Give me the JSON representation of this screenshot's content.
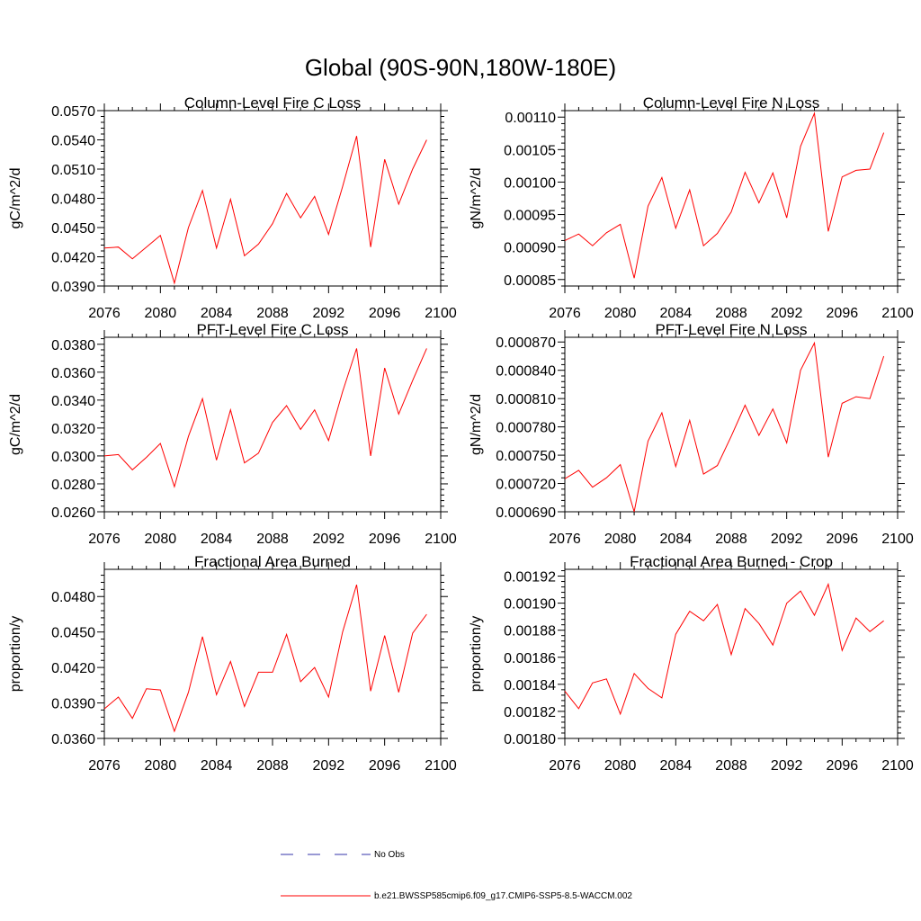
{
  "figure": {
    "title": "Global (90S-90N,180W-180E)"
  },
  "legend": {
    "entries": [
      {
        "label": "No Obs",
        "color": "#3333aa",
        "style": "dashed"
      },
      {
        "label": "b.e21.BWSSP585cmip6.f09_g17.CMIP6-SSP5-8.5-WACCM.002",
        "color": "#ff0000",
        "style": "solid"
      }
    ]
  },
  "chart_data": [
    {
      "type": "line",
      "title": "Column-Level Fire C Loss",
      "xlabel": "",
      "ylabel": "gC/m^2/d",
      "xlim": [
        2076,
        2100
      ],
      "ylim": [
        0.039,
        0.057
      ],
      "xticks": [
        "2076",
        "2080",
        "2084",
        "2088",
        "2092",
        "2096",
        "2100"
      ],
      "yticks": [
        "0.0390",
        "0.0420",
        "0.0450",
        "0.0480",
        "0.0510",
        "0.0540",
        "0.0570"
      ],
      "x": [
        2076,
        2077,
        2078,
        2079,
        2080,
        2081,
        2082,
        2083,
        2084,
        2085,
        2086,
        2087,
        2088,
        2089,
        2090,
        2091,
        2092,
        2093,
        2094,
        2095,
        2096,
        2097,
        2098,
        2099
      ],
      "series": [
        {
          "color": "#ff0000",
          "values": [
            0.0429,
            0.043,
            0.0418,
            0.043,
            0.0442,
            0.0393,
            0.045,
            0.0488,
            0.0429,
            0.0479,
            0.0421,
            0.0433,
            0.0454,
            0.0485,
            0.046,
            0.0482,
            0.0443,
            0.0492,
            0.0544,
            0.043,
            0.052,
            0.0474,
            0.051,
            0.054
          ]
        }
      ]
    },
    {
      "type": "line",
      "title": "Column-Level Fire N Loss",
      "xlabel": "",
      "ylabel": "gN/m^2/d",
      "xlim": [
        2076,
        2100
      ],
      "ylim": [
        0.00084,
        0.00111
      ],
      "xticks": [
        "2076",
        "2080",
        "2084",
        "2088",
        "2092",
        "2096",
        "2100"
      ],
      "yticks": [
        "0.00085",
        "0.00090",
        "0.00095",
        "0.00100",
        "0.00105",
        "0.00110"
      ],
      "x": [
        2076,
        2077,
        2078,
        2079,
        2080,
        2081,
        2082,
        2083,
        2084,
        2085,
        2086,
        2087,
        2088,
        2089,
        2090,
        2091,
        2092,
        2093,
        2094,
        2095,
        2096,
        2097,
        2098,
        2099
      ],
      "series": [
        {
          "color": "#ff0000",
          "values": [
            0.00091,
            0.00092,
            0.000902,
            0.000922,
            0.000935,
            0.000852,
            0.000963,
            0.001007,
            0.000929,
            0.000988,
            0.000902,
            0.000921,
            0.000954,
            0.001015,
            0.000968,
            0.001014,
            0.000945,
            0.001055,
            0.001106,
            0.000924,
            0.001008,
            0.001018,
            0.00102,
            0.001076
          ]
        }
      ]
    },
    {
      "type": "line",
      "title": "PFT-Level Fire C Loss",
      "xlabel": "",
      "ylabel": "gC/m^2/d",
      "xlim": [
        2076,
        2100
      ],
      "ylim": [
        0.026,
        0.0385
      ],
      "xticks": [
        "2076",
        "2080",
        "2084",
        "2088",
        "2092",
        "2096",
        "2100"
      ],
      "yticks": [
        "0.0260",
        "0.0280",
        "0.0300",
        "0.0320",
        "0.0340",
        "0.0360",
        "0.0380"
      ],
      "x": [
        2076,
        2077,
        2078,
        2079,
        2080,
        2081,
        2082,
        2083,
        2084,
        2085,
        2086,
        2087,
        2088,
        2089,
        2090,
        2091,
        2092,
        2093,
        2094,
        2095,
        2096,
        2097,
        2098,
        2099
      ],
      "series": [
        {
          "color": "#ff0000",
          "values": [
            0.03,
            0.0301,
            0.029,
            0.0299,
            0.0309,
            0.0278,
            0.0314,
            0.0341,
            0.0297,
            0.0333,
            0.0295,
            0.0302,
            0.0324,
            0.0336,
            0.0319,
            0.0333,
            0.0311,
            0.0346,
            0.0377,
            0.03,
            0.0363,
            0.033,
            0.0354,
            0.0377
          ]
        }
      ]
    },
    {
      "type": "line",
      "title": "PFT-Level Fire N Loss",
      "xlabel": "",
      "ylabel": "gN/m^2/d",
      "xlim": [
        2076,
        2100
      ],
      "ylim": [
        0.00069,
        0.000875
      ],
      "xticks": [
        "2076",
        "2080",
        "2084",
        "2088",
        "2092",
        "2096",
        "2100"
      ],
      "yticks": [
        "0.000690",
        "0.000720",
        "0.000750",
        "0.000780",
        "0.000810",
        "0.000840",
        "0.000870"
      ],
      "x": [
        2076,
        2077,
        2078,
        2079,
        2080,
        2081,
        2082,
        2083,
        2084,
        2085,
        2086,
        2087,
        2088,
        2089,
        2090,
        2091,
        2092,
        2093,
        2094,
        2095,
        2096,
        2097,
        2098,
        2099
      ],
      "series": [
        {
          "color": "#ff0000",
          "values": [
            0.000725,
            0.000734,
            0.000716,
            0.000726,
            0.00074,
            0.00069,
            0.000765,
            0.000795,
            0.000738,
            0.000787,
            0.00073,
            0.000739,
            0.00077,
            0.000803,
            0.000771,
            0.000799,
            0.000763,
            0.00084,
            0.000869,
            0.000748,
            0.000805,
            0.000812,
            0.00081,
            0.000855
          ]
        }
      ]
    },
    {
      "type": "line",
      "title": "Fractional Area Burned",
      "xlabel": "",
      "ylabel": "proportion/y",
      "xlim": [
        2076,
        2100
      ],
      "ylim": [
        0.036,
        0.0503
      ],
      "xticks": [
        "2076",
        "2080",
        "2084",
        "2088",
        "2092",
        "2096",
        "2100"
      ],
      "yticks": [
        "0.0360",
        "0.0390",
        "0.0420",
        "0.0450",
        "0.0480"
      ],
      "x": [
        2076,
        2077,
        2078,
        2079,
        2080,
        2081,
        2082,
        2083,
        2084,
        2085,
        2086,
        2087,
        2088,
        2089,
        2090,
        2091,
        2092,
        2093,
        2094,
        2095,
        2096,
        2097,
        2098,
        2099
      ],
      "series": [
        {
          "color": "#ff0000",
          "values": [
            0.0385,
            0.0395,
            0.0377,
            0.0402,
            0.0401,
            0.0366,
            0.0399,
            0.0446,
            0.0397,
            0.0425,
            0.0387,
            0.0416,
            0.0416,
            0.0448,
            0.0408,
            0.042,
            0.0395,
            0.045,
            0.049,
            0.04,
            0.0447,
            0.0399,
            0.0449,
            0.0465
          ]
        }
      ]
    },
    {
      "type": "line",
      "title": "Fractional Area Burned - Crop",
      "xlabel": "",
      "ylabel": "proportion/y",
      "xlim": [
        2076,
        2100
      ],
      "ylim": [
        0.0018,
        0.001925
      ],
      "xticks": [
        "2076",
        "2080",
        "2084",
        "2088",
        "2092",
        "2096",
        "2100"
      ],
      "yticks": [
        "0.00180",
        "0.00182",
        "0.00184",
        "0.00186",
        "0.00188",
        "0.00190",
        "0.00192"
      ],
      "x": [
        2076,
        2077,
        2078,
        2079,
        2080,
        2081,
        2082,
        2083,
        2084,
        2085,
        2086,
        2087,
        2088,
        2089,
        2090,
        2091,
        2092,
        2093,
        2094,
        2095,
        2096,
        2097,
        2098,
        2099
      ],
      "series": [
        {
          "color": "#ff0000",
          "values": [
            0.001835,
            0.001822,
            0.001841,
            0.001844,
            0.001818,
            0.001848,
            0.001837,
            0.00183,
            0.001877,
            0.001894,
            0.001887,
            0.001899,
            0.001862,
            0.001896,
            0.001885,
            0.001869,
            0.0019,
            0.001909,
            0.001891,
            0.001914,
            0.001865,
            0.001889,
            0.001879,
            0.001887
          ]
        }
      ]
    }
  ]
}
